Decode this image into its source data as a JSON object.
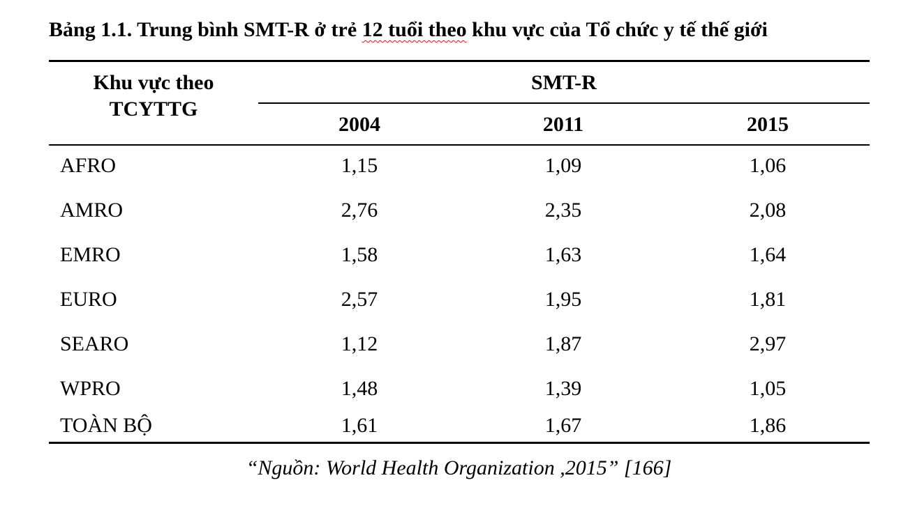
{
  "caption": {
    "prefix": "Bảng 1.1. Trung bình SMT-R ở trẻ ",
    "flagged": "12 tuổi theo",
    "suffix": " khu vực của Tổ chức y tế thế giới"
  },
  "header": {
    "region_line1": "Khu vực theo",
    "region_line2": "TCYTTG",
    "group": "SMT-R",
    "years": [
      "2004",
      "2011",
      "2015"
    ]
  },
  "rows": [
    {
      "region": "AFRO",
      "values": [
        "1,15",
        "1,09",
        "1,06"
      ]
    },
    {
      "region": "AMRO",
      "values": [
        "2,76",
        "2,35",
        "2,08"
      ]
    },
    {
      "region": "EMRO",
      "values": [
        "1,58",
        "1,63",
        "1,64"
      ]
    },
    {
      "region": "EURO",
      "values": [
        "2,57",
        "1,95",
        "1,81"
      ]
    },
    {
      "region": "SEARO",
      "values": [
        "1,12",
        "1,87",
        "2,97"
      ]
    },
    {
      "region": "WPRO",
      "values": [
        "1,48",
        "1,39",
        "1,05"
      ]
    },
    {
      "region": "TOÀN BỘ",
      "values": [
        "1,61",
        "1,67",
        "1,86"
      ]
    }
  ],
  "source": "“Nguồn: World Health Organization ,2015” [166]",
  "colors": {
    "text": "#000000",
    "spellcheck_underline": "#d11a1a"
  }
}
